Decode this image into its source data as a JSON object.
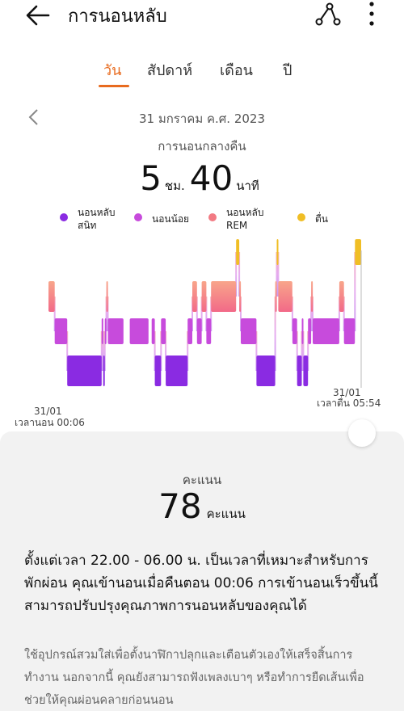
{
  "header": {
    "title": "การนอนหลับ",
    "back_icon": "arrow-left-icon",
    "share_icon": "share-icon",
    "more_icon": "more-vertical-icon"
  },
  "tabs": [
    {
      "label": "วัน",
      "active": true
    },
    {
      "label": "สัปดาห์",
      "active": false
    },
    {
      "label": "เดือน",
      "active": false
    },
    {
      "label": "ปี",
      "active": false
    }
  ],
  "summary": {
    "date": "31 มกราคม ค.ศ. 2023",
    "subtitle": "การนอนกลางคืน",
    "hours": "5",
    "hours_unit": "ชม.",
    "minutes": "40",
    "minutes_unit": "นาที"
  },
  "legend": [
    {
      "label": "นอนหลับ\nสนิท",
      "color": "#8a2be2"
    },
    {
      "label": "นอนน้อย",
      "color": "#c74bdc"
    },
    {
      "label": "นอนหลับ\nREM",
      "color": "#f27a83"
    },
    {
      "label": "ตื่น",
      "color": "#f0be25"
    }
  ],
  "chart_data": {
    "type": "hypnogram",
    "start_label_date": "31/01",
    "start_label_time": "เวลานอน 00:06",
    "end_label_date": "31/01",
    "end_label_time": "เวลาตื่น 05:54",
    "stages": [
      "deep",
      "light",
      "rem",
      "awake"
    ],
    "segments": [
      {
        "stage": "rem",
        "start": 0.0,
        "end": 0.02
      },
      {
        "stage": "light",
        "start": 0.02,
        "end": 0.06
      },
      {
        "stage": "deep",
        "start": 0.06,
        "end": 0.17
      },
      {
        "stage": "light",
        "start": 0.17,
        "end": 0.175
      },
      {
        "stage": "deep",
        "start": 0.175,
        "end": 0.18
      },
      {
        "stage": "light",
        "start": 0.18,
        "end": 0.185
      },
      {
        "stage": "rem",
        "start": 0.185,
        "end": 0.19
      },
      {
        "stage": "light",
        "start": 0.19,
        "end": 0.24
      },
      {
        "stage": "light",
        "start": 0.26,
        "end": 0.32
      },
      {
        "stage": "light",
        "start": 0.33,
        "end": 0.34
      },
      {
        "stage": "deep",
        "start": 0.34,
        "end": 0.36
      },
      {
        "stage": "light",
        "start": 0.36,
        "end": 0.375
      },
      {
        "stage": "deep",
        "start": 0.375,
        "end": 0.445
      },
      {
        "stage": "light",
        "start": 0.445,
        "end": 0.46
      },
      {
        "stage": "rem",
        "start": 0.46,
        "end": 0.475
      },
      {
        "stage": "light",
        "start": 0.475,
        "end": 0.49
      },
      {
        "stage": "rem",
        "start": 0.49,
        "end": 0.505
      },
      {
        "stage": "light",
        "start": 0.505,
        "end": 0.52
      },
      {
        "stage": "rem",
        "start": 0.52,
        "end": 0.6
      },
      {
        "stage": "awake",
        "start": 0.6,
        "end": 0.61
      },
      {
        "stage": "rem",
        "start": 0.61,
        "end": 0.615
      },
      {
        "stage": "light",
        "start": 0.615,
        "end": 0.665
      },
      {
        "stage": "deep",
        "start": 0.665,
        "end": 0.725
      },
      {
        "stage": "rem",
        "start": 0.725,
        "end": 0.73
      },
      {
        "stage": "awake",
        "start": 0.73,
        "end": 0.735
      },
      {
        "stage": "rem",
        "start": 0.735,
        "end": 0.78
      },
      {
        "stage": "light",
        "start": 0.78,
        "end": 0.795
      },
      {
        "stage": "deep",
        "start": 0.795,
        "end": 0.81
      },
      {
        "stage": "light",
        "start": 0.81,
        "end": 0.815
      },
      {
        "stage": "deep",
        "start": 0.815,
        "end": 0.83
      },
      {
        "stage": "light",
        "start": 0.83,
        "end": 0.84
      },
      {
        "stage": "rem",
        "start": 0.84,
        "end": 0.845
      },
      {
        "stage": "light",
        "start": 0.845,
        "end": 0.93
      },
      {
        "stage": "rem",
        "start": 0.93,
        "end": 0.945
      },
      {
        "stage": "light",
        "start": 0.945,
        "end": 0.98
      },
      {
        "stage": "awake",
        "start": 0.98,
        "end": 1.0
      }
    ]
  },
  "score": {
    "label": "คะแนน",
    "value": "78",
    "unit": "คะแนน"
  },
  "advice": "ตั้งแต่เวลา 22.00 - 06.00 น. เป็นเวลาที่เหมาะสำหรับการพักผ่อน คุณเข้านอนเมื่อคืนตอน 00:06 การเข้านอนเร็วขึ้นนี้สามารถปรับปรุงคุณภาพการนอนหลับของคุณได้",
  "tip": "ใช้อุปกรณ์สวมใส่เพื่อตั้งนาฬิกาปลุกและเตือนตัวเองให้เสร็จสิ้นการทำงาน นอกจากนี้ คุณยังสามารถฟังเพลงเบาๆ หรือทำการยืดเส้นเพื่อช่วยให้คุณผ่อนคลายก่อนนอน"
}
